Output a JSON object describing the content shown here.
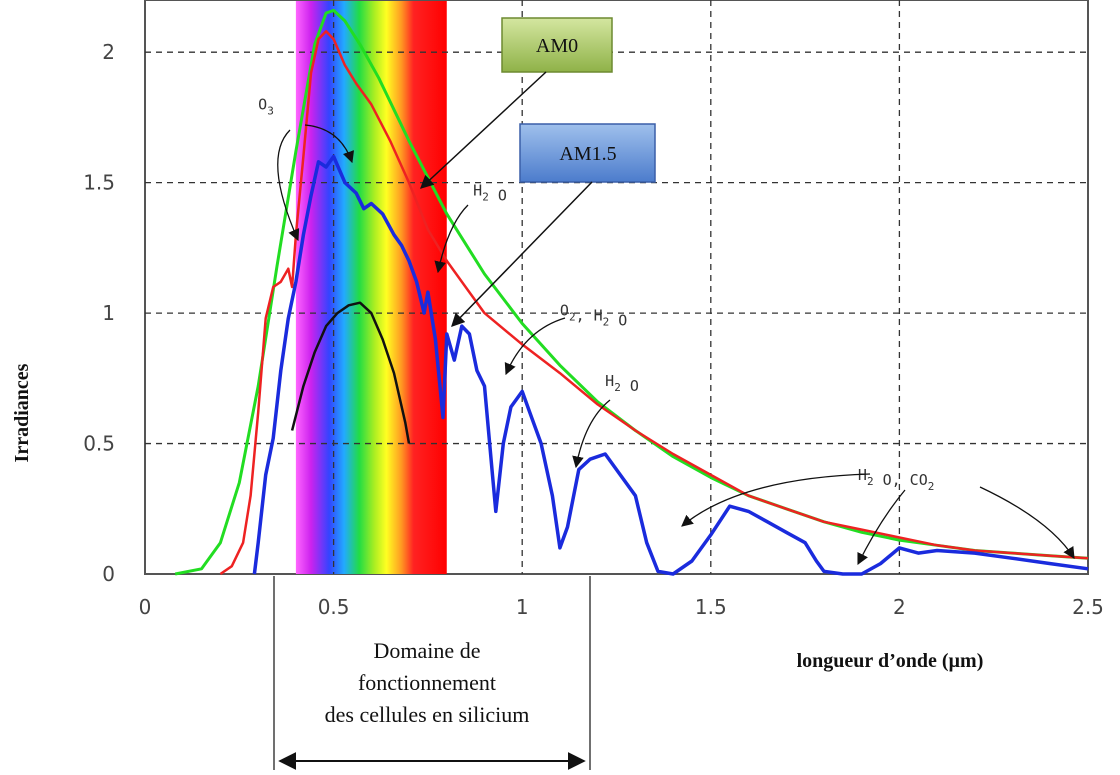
{
  "chart_data": {
    "type": "line",
    "xlabel": "longueur d’onde (µm)",
    "ylabel": "Irradiances",
    "xlim": [
      0,
      2.5
    ],
    "ylim": [
      0,
      2.2
    ],
    "x_ticks": [
      "0",
      "0.5",
      "1",
      "1.5",
      "2",
      "2.5"
    ],
    "y_ticks": [
      "0",
      "0.5",
      "1",
      "1.5",
      "2"
    ],
    "grid": true,
    "visible_band": [
      0.4,
      0.8
    ],
    "series": [
      {
        "name": "AM0",
        "color": "#22dd22",
        "points": [
          [
            0.08,
            0
          ],
          [
            0.15,
            0.02
          ],
          [
            0.2,
            0.12
          ],
          [
            0.25,
            0.35
          ],
          [
            0.3,
            0.72
          ],
          [
            0.35,
            1.18
          ],
          [
            0.4,
            1.62
          ],
          [
            0.45,
            2.03
          ],
          [
            0.48,
            2.15
          ],
          [
            0.5,
            2.16
          ],
          [
            0.53,
            2.12
          ],
          [
            0.57,
            2.03
          ],
          [
            0.62,
            1.9
          ],
          [
            0.7,
            1.66
          ],
          [
            0.8,
            1.38
          ],
          [
            0.9,
            1.15
          ],
          [
            1.0,
            0.96
          ],
          [
            1.1,
            0.8
          ],
          [
            1.2,
            0.66
          ],
          [
            1.3,
            0.55
          ],
          [
            1.4,
            0.45
          ],
          [
            1.5,
            0.37
          ],
          [
            1.6,
            0.3
          ],
          [
            1.7,
            0.25
          ],
          [
            1.8,
            0.2
          ],
          [
            1.9,
            0.16
          ],
          [
            2.0,
            0.13
          ],
          [
            2.1,
            0.11
          ],
          [
            2.2,
            0.09
          ],
          [
            2.3,
            0.08
          ],
          [
            2.4,
            0.07
          ],
          [
            2.5,
            0.06
          ]
        ]
      },
      {
        "name": "",
        "color": "#ee2222",
        "points": [
          [
            0.2,
            0
          ],
          [
            0.23,
            0.03
          ],
          [
            0.26,
            0.12
          ],
          [
            0.28,
            0.3
          ],
          [
            0.3,
            0.62
          ],
          [
            0.32,
            0.98
          ],
          [
            0.34,
            1.1
          ],
          [
            0.36,
            1.12
          ],
          [
            0.38,
            1.17
          ],
          [
            0.39,
            1.1
          ],
          [
            0.4,
            1.3
          ],
          [
            0.42,
            1.6
          ],
          [
            0.44,
            1.92
          ],
          [
            0.46,
            2.05
          ],
          [
            0.48,
            2.08
          ],
          [
            0.5,
            2.05
          ],
          [
            0.53,
            1.95
          ],
          [
            0.56,
            1.88
          ],
          [
            0.6,
            1.8
          ],
          [
            0.65,
            1.66
          ],
          [
            0.7,
            1.5
          ],
          [
            0.75,
            1.32
          ],
          [
            0.8,
            1.2
          ],
          [
            0.85,
            1.1
          ],
          [
            0.9,
            1.0
          ],
          [
            1.0,
            0.88
          ],
          [
            1.1,
            0.77
          ],
          [
            1.2,
            0.65
          ],
          [
            1.3,
            0.55
          ],
          [
            1.4,
            0.46
          ],
          [
            1.5,
            0.38
          ],
          [
            1.6,
            0.3
          ],
          [
            1.7,
            0.25
          ],
          [
            1.8,
            0.2
          ],
          [
            1.9,
            0.17
          ],
          [
            2.0,
            0.14
          ],
          [
            2.1,
            0.11
          ],
          [
            2.2,
            0.09
          ],
          [
            2.3,
            0.08
          ],
          [
            2.4,
            0.07
          ],
          [
            2.5,
            0.06
          ]
        ]
      },
      {
        "name": "AM1.5",
        "color": "#1a2bdd",
        "points": [
          [
            0.29,
            0
          ],
          [
            0.3,
            0.12
          ],
          [
            0.32,
            0.38
          ],
          [
            0.34,
            0.52
          ],
          [
            0.36,
            0.78
          ],
          [
            0.38,
            0.98
          ],
          [
            0.4,
            1.12
          ],
          [
            0.42,
            1.3
          ],
          [
            0.44,
            1.45
          ],
          [
            0.46,
            1.58
          ],
          [
            0.48,
            1.56
          ],
          [
            0.5,
            1.6
          ],
          [
            0.53,
            1.5
          ],
          [
            0.56,
            1.46
          ],
          [
            0.58,
            1.4
          ],
          [
            0.6,
            1.42
          ],
          [
            0.63,
            1.38
          ],
          [
            0.66,
            1.3
          ],
          [
            0.68,
            1.26
          ],
          [
            0.7,
            1.2
          ],
          [
            0.72,
            1.12
          ],
          [
            0.74,
            1.0
          ],
          [
            0.75,
            1.08
          ],
          [
            0.77,
            0.9
          ],
          [
            0.79,
            0.6
          ],
          [
            0.8,
            0.92
          ],
          [
            0.82,
            0.82
          ],
          [
            0.84,
            0.95
          ],
          [
            0.86,
            0.92
          ],
          [
            0.88,
            0.78
          ],
          [
            0.9,
            0.72
          ],
          [
            0.92,
            0.4
          ],
          [
            0.93,
            0.24
          ],
          [
            0.95,
            0.5
          ],
          [
            0.97,
            0.64
          ],
          [
            1.0,
            0.7
          ],
          [
            1.02,
            0.62
          ],
          [
            1.05,
            0.5
          ],
          [
            1.08,
            0.3
          ],
          [
            1.1,
            0.1
          ],
          [
            1.12,
            0.18
          ],
          [
            1.15,
            0.4
          ],
          [
            1.18,
            0.44
          ],
          [
            1.22,
            0.46
          ],
          [
            1.26,
            0.38
          ],
          [
            1.3,
            0.3
          ],
          [
            1.33,
            0.12
          ],
          [
            1.36,
            0.01
          ],
          [
            1.4,
            0
          ],
          [
            1.45,
            0.05
          ],
          [
            1.5,
            0.15
          ],
          [
            1.55,
            0.26
          ],
          [
            1.6,
            0.24
          ],
          [
            1.65,
            0.2
          ],
          [
            1.7,
            0.16
          ],
          [
            1.75,
            0.12
          ],
          [
            1.78,
            0.05
          ],
          [
            1.8,
            0.01
          ],
          [
            1.85,
            0
          ],
          [
            1.9,
            0
          ],
          [
            1.95,
            0.04
          ],
          [
            2.0,
            0.1
          ],
          [
            2.05,
            0.08
          ],
          [
            2.1,
            0.09
          ],
          [
            2.2,
            0.08
          ],
          [
            2.3,
            0.06
          ],
          [
            2.4,
            0.04
          ],
          [
            2.5,
            0.02
          ]
        ]
      },
      {
        "name": "",
        "color": "#111111",
        "points": [
          [
            0.39,
            0.55
          ],
          [
            0.42,
            0.72
          ],
          [
            0.45,
            0.85
          ],
          [
            0.48,
            0.95
          ],
          [
            0.51,
            1.0
          ],
          [
            0.54,
            1.03
          ],
          [
            0.57,
            1.04
          ],
          [
            0.6,
            1.0
          ],
          [
            0.63,
            0.9
          ],
          [
            0.66,
            0.77
          ],
          [
            0.69,
            0.58
          ],
          [
            0.7,
            0.5
          ]
        ]
      }
    ],
    "callouts": [
      "AM0",
      "AM1.5"
    ],
    "annotations": [
      {
        "label": "O",
        "sub": "3",
        "x": 0.3,
        "y": 1.78
      },
      {
        "label": "H",
        "sub": "2",
        "rest": " O",
        "x": 0.87,
        "y": 1.45
      },
      {
        "label": "O",
        "sub": "2",
        "rest": ", H",
        "sub2": "2",
        "rest2": " O",
        "x": 1.1,
        "y": 0.99
      },
      {
        "label": "H",
        "sub": "2",
        "rest": " O",
        "x": 1.22,
        "y": 0.72
      },
      {
        "label": "H",
        "sub": "2",
        "rest": " O, CO",
        "sub2": "2",
        "x": 1.89,
        "y": 0.36
      }
    ],
    "domain_label": [
      "Domaine de",
      "fonctionnement",
      "des cellules en silicium"
    ]
  }
}
